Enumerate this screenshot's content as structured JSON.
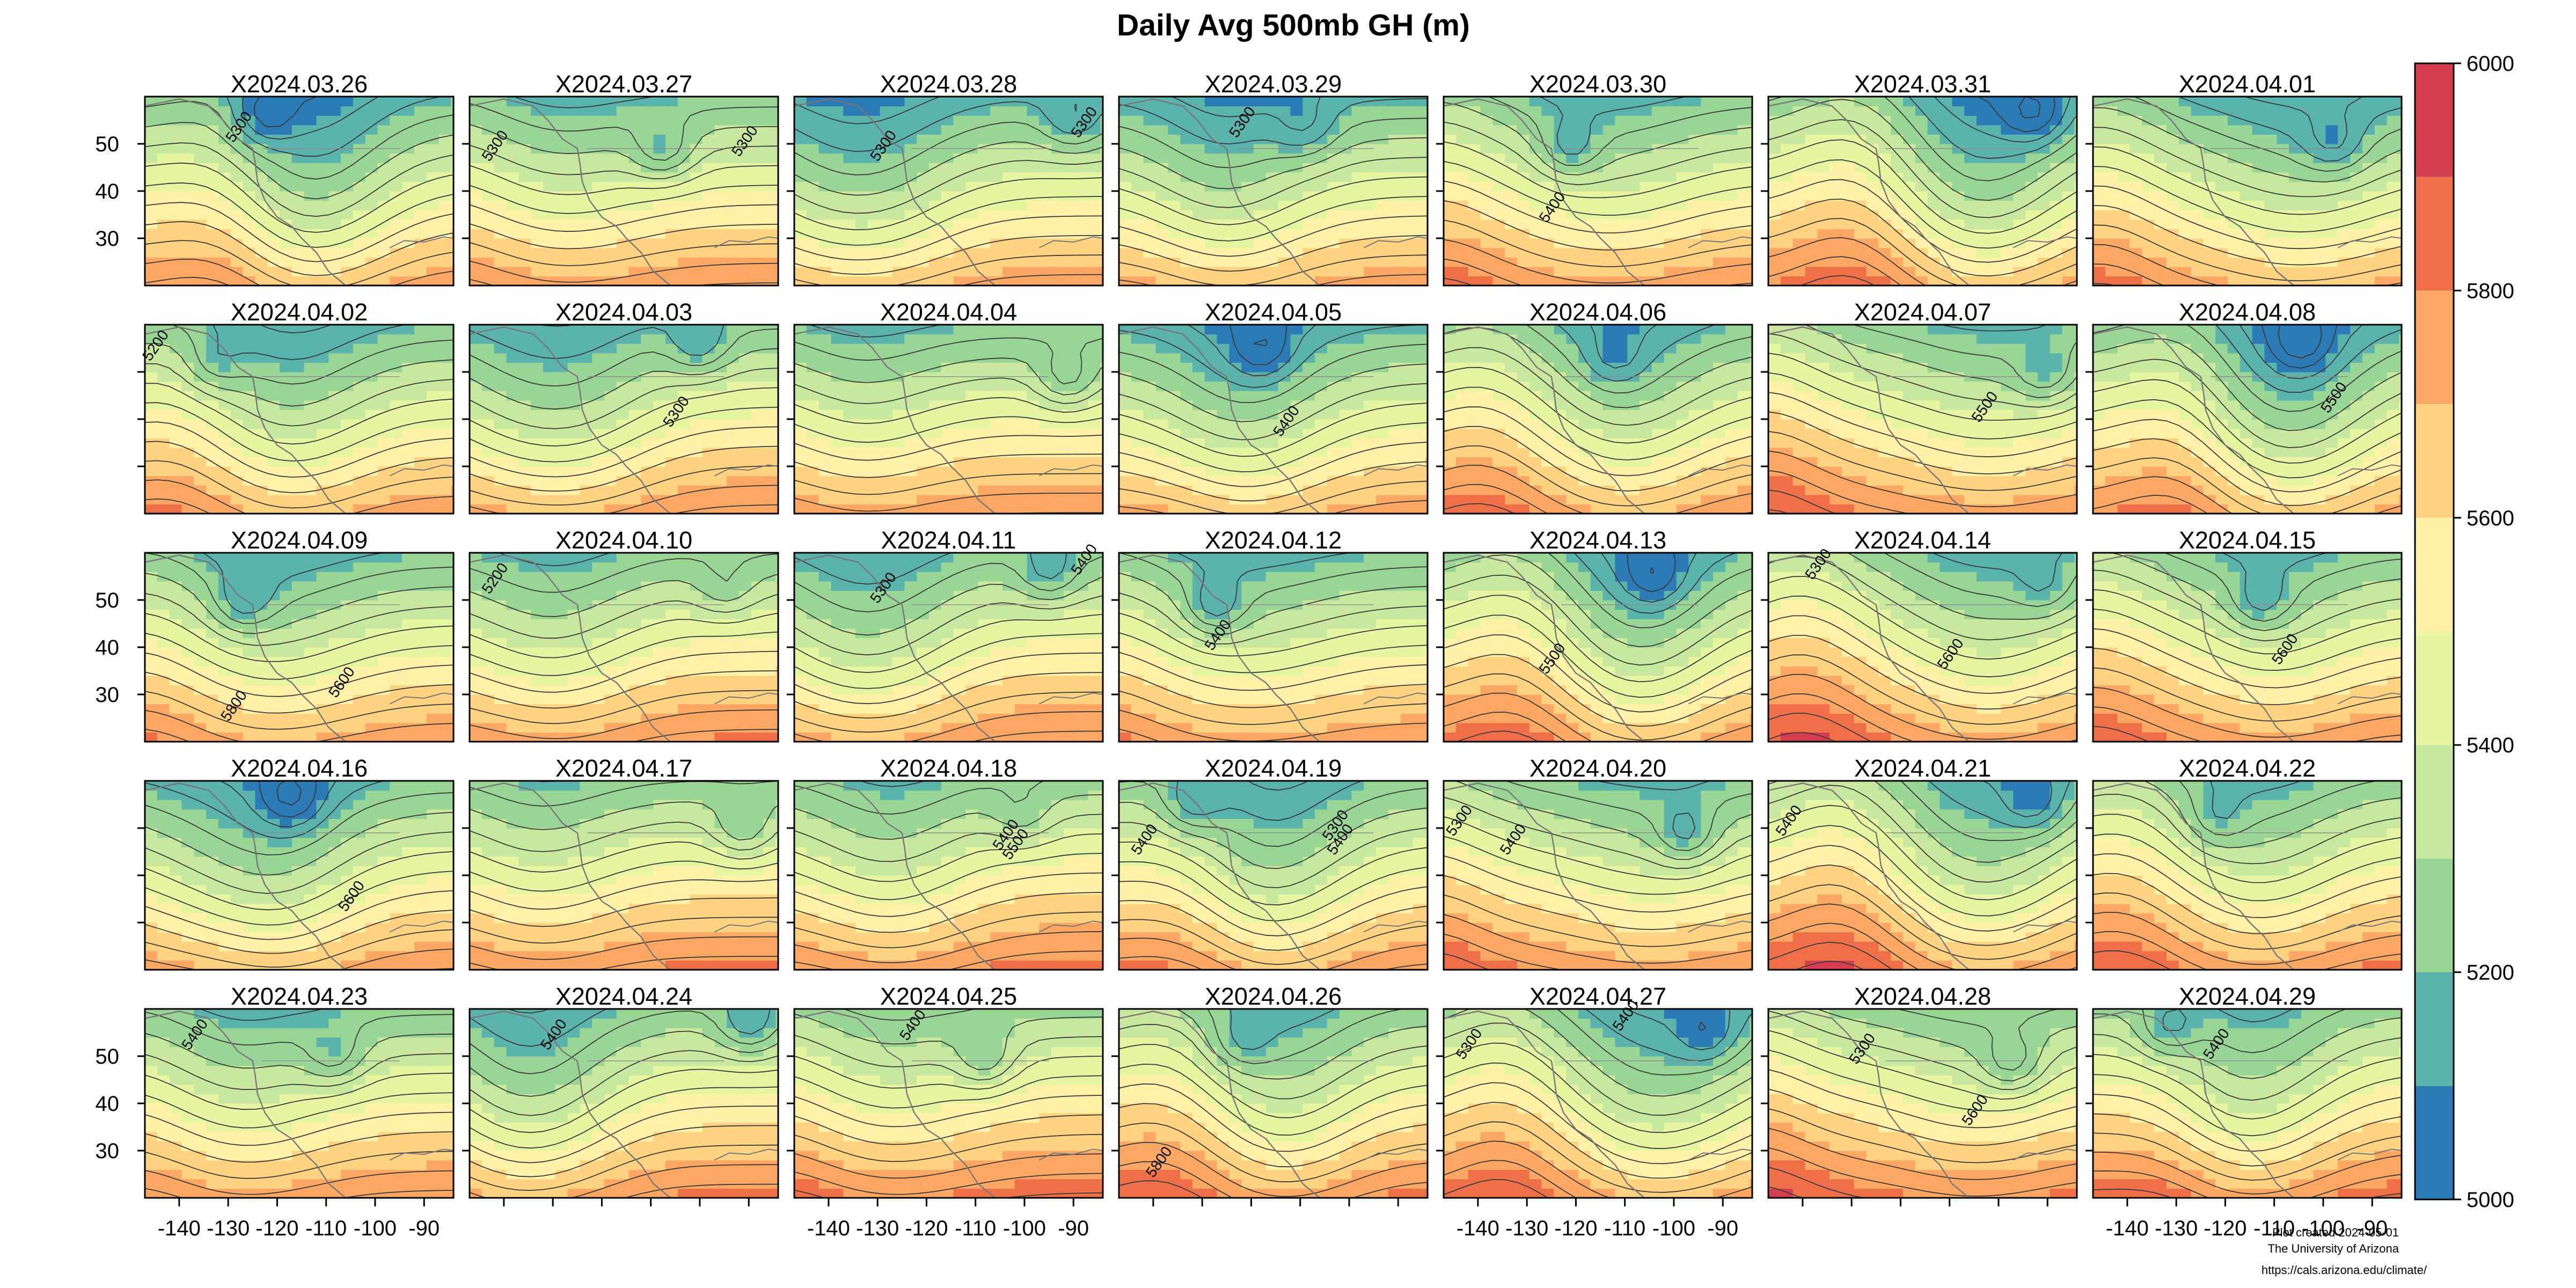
{
  "chart_data": {
    "type": "heatmap",
    "title": "Daily Avg 500mb GH (m)",
    "panel_titles": [
      "X2024.03.26",
      "X2024.03.27",
      "X2024.03.28",
      "X2024.03.29",
      "X2024.03.30",
      "X2024.03.31",
      "X2024.04.01",
      "X2024.04.02",
      "X2024.04.03",
      "X2024.04.04",
      "X2024.04.05",
      "X2024.04.06",
      "X2024.04.07",
      "X2024.04.08",
      "X2024.04.09",
      "X2024.04.10",
      "X2024.04.11",
      "X2024.04.12",
      "X2024.04.13",
      "X2024.04.14",
      "X2024.04.15",
      "X2024.04.16",
      "X2024.04.17",
      "X2024.04.18",
      "X2024.04.19",
      "X2024.04.20",
      "X2024.04.21",
      "X2024.04.22",
      "X2024.04.23",
      "X2024.04.24",
      "X2024.04.25",
      "X2024.04.26",
      "X2024.04.27",
      "X2024.04.28",
      "X2024.04.29"
    ],
    "x_tick_labels": [
      "-140",
      "-130",
      "-120",
      "-110",
      "-100",
      "-90"
    ],
    "x_ticks": [
      -140,
      -130,
      -120,
      -110,
      -100,
      -90
    ],
    "xlim": [
      -147,
      -84
    ],
    "y_tick_labels": [
      "30",
      "40",
      "50"
    ],
    "y_ticks": [
      30,
      40,
      50
    ],
    "ylim": [
      20,
      60
    ],
    "colorbar": {
      "tick_labels": [
        "5000",
        "5200",
        "5400",
        "5600",
        "5800",
        "6000"
      ],
      "levels": [
        5000,
        5100,
        5200,
        5300,
        5400,
        5500,
        5600,
        5700,
        5800,
        5900,
        6000
      ],
      "colors": [
        "#2c7bb6",
        "#5ab4ac",
        "#99d594",
        "#c7e89e",
        "#e6f5a0",
        "#fff2a8",
        "#fed281",
        "#fca764",
        "#ef7048",
        "#d53e4f"
      ]
    },
    "contour_labels": [
      {
        "panel": 0,
        "lon": -127,
        "lat": 53,
        "text": "5300"
      },
      {
        "panel": 1,
        "lon": -141,
        "lat": 49,
        "text": "5300"
      },
      {
        "panel": 1,
        "lon": -90,
        "lat": 50,
        "text": "5300"
      },
      {
        "panel": 2,
        "lon": -128,
        "lat": 49,
        "text": "5300"
      },
      {
        "panel": 2,
        "lon": -87,
        "lat": 54,
        "text": "5300"
      },
      {
        "panel": 3,
        "lon": -121,
        "lat": 54,
        "text": "5300"
      },
      {
        "panel": 4,
        "lon": -124,
        "lat": 36,
        "text": "5400"
      },
      {
        "panel": 7,
        "lon": -144,
        "lat": 55,
        "text": "5200"
      },
      {
        "panel": 8,
        "lon": -104,
        "lat": 41,
        "text": "5300"
      },
      {
        "panel": 10,
        "lon": -112,
        "lat": 39,
        "text": "5400"
      },
      {
        "panel": 12,
        "lon": -102,
        "lat": 42,
        "text": "5500"
      },
      {
        "panel": 13,
        "lon": -97,
        "lat": 44,
        "text": "5500"
      },
      {
        "panel": 14,
        "lon": -128,
        "lat": 27,
        "text": "5800"
      },
      {
        "panel": 14,
        "lon": -106,
        "lat": 32,
        "text": "5600"
      },
      {
        "panel": 15,
        "lon": -141,
        "lat": 54,
        "text": "5200"
      },
      {
        "panel": 16,
        "lon": -128,
        "lat": 52,
        "text": "5300"
      },
      {
        "panel": 16,
        "lon": -87,
        "lat": 58,
        "text": "5400"
      },
      {
        "panel": 17,
        "lon": -126,
        "lat": 42,
        "text": "5400"
      },
      {
        "panel": 18,
        "lon": -124,
        "lat": 37,
        "text": "5500"
      },
      {
        "panel": 19,
        "lon": -136,
        "lat": 57,
        "text": "5300"
      },
      {
        "panel": 19,
        "lon": -109,
        "lat": 38,
        "text": "5600"
      },
      {
        "panel": 20,
        "lon": -107,
        "lat": 39,
        "text": "5600"
      },
      {
        "panel": 21,
        "lon": -104,
        "lat": 35,
        "text": "5600"
      },
      {
        "panel": 23,
        "lon": -103,
        "lat": 48,
        "text": "5400"
      },
      {
        "panel": 23,
        "lon": -101,
        "lat": 46,
        "text": "5500"
      },
      {
        "panel": 24,
        "lon": -141,
        "lat": 47,
        "text": "5400"
      },
      {
        "panel": 24,
        "lon": -102,
        "lat": 50,
        "text": "5300"
      },
      {
        "panel": 24,
        "lon": -101,
        "lat": 47,
        "text": "5400"
      },
      {
        "panel": 25,
        "lon": -143,
        "lat": 51,
        "text": "5300"
      },
      {
        "panel": 25,
        "lon": -132,
        "lat": 47,
        "text": "5400"
      },
      {
        "panel": 26,
        "lon": -142,
        "lat": 51,
        "text": "5400"
      },
      {
        "panel": 28,
        "lon": -136,
        "lat": 54,
        "text": "5400"
      },
      {
        "panel": 29,
        "lon": -129,
        "lat": 54,
        "text": "5400"
      },
      {
        "panel": 30,
        "lon": -122,
        "lat": 56,
        "text": "5400"
      },
      {
        "panel": 31,
        "lon": -138,
        "lat": 27,
        "text": "5800"
      },
      {
        "panel": 32,
        "lon": -141,
        "lat": 52,
        "text": "5300"
      },
      {
        "panel": 32,
        "lon": -109,
        "lat": 58,
        "text": "5400"
      },
      {
        "panel": 33,
        "lon": -127,
        "lat": 51,
        "text": "5300"
      },
      {
        "panel": 33,
        "lon": -104,
        "lat": 38,
        "text": "5600"
      },
      {
        "panel": 34,
        "lon": -121,
        "lat": 52,
        "text": "5400"
      }
    ]
  },
  "credits": {
    "plot_date": "Plot created 2024-05-01",
    "institution": "The University of Arizona",
    "url": "https://cals.arizona.edu/climate/"
  }
}
